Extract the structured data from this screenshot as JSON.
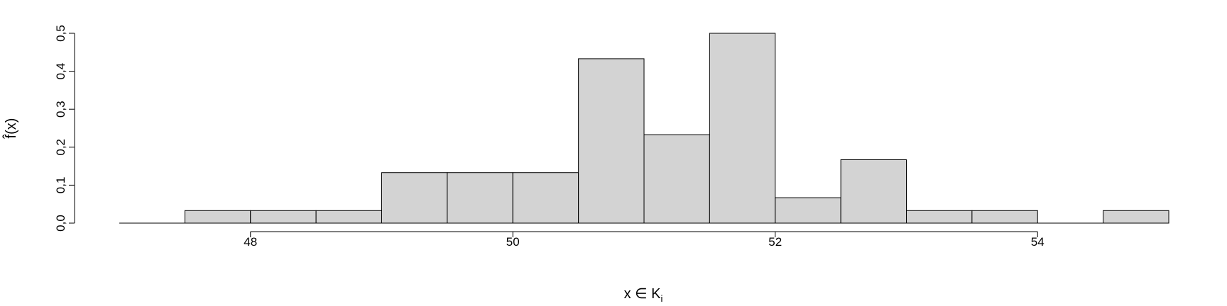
{
  "chart_data": {
    "type": "bar",
    "subtype": "histogram",
    "xlabel": "x ∈ K",
    "xlabel_sub": "i",
    "ylabel": "f̂(x)",
    "xlim": [
      47,
      55
    ],
    "ylim": [
      0,
      0.5
    ],
    "bins": [
      {
        "x0": 47.5,
        "x1": 48.0,
        "value": 0.033
      },
      {
        "x0": 48.0,
        "x1": 48.5,
        "value": 0.033
      },
      {
        "x0": 48.5,
        "x1": 49.0,
        "value": 0.033
      },
      {
        "x0": 49.0,
        "x1": 49.5,
        "value": 0.133
      },
      {
        "x0": 49.5,
        "x1": 50.0,
        "value": 0.133
      },
      {
        "x0": 50.0,
        "x1": 50.5,
        "value": 0.133
      },
      {
        "x0": 50.5,
        "x1": 51.0,
        "value": 0.433
      },
      {
        "x0": 51.0,
        "x1": 51.5,
        "value": 0.233
      },
      {
        "x0": 51.5,
        "x1": 52.0,
        "value": 0.5
      },
      {
        "x0": 52.0,
        "x1": 52.5,
        "value": 0.067
      },
      {
        "x0": 52.5,
        "x1": 53.0,
        "value": 0.167
      },
      {
        "x0": 53.0,
        "x1": 53.5,
        "value": 0.033
      },
      {
        "x0": 53.5,
        "x1": 54.0,
        "value": 0.033
      },
      {
        "x0": 54.5,
        "x1": 55.0,
        "value": 0.033
      }
    ],
    "x_ticks": [
      {
        "value": 48,
        "label": "48"
      },
      {
        "value": 50,
        "label": "50"
      },
      {
        "value": 52,
        "label": "52"
      },
      {
        "value": 54,
        "label": "54"
      }
    ],
    "y_ticks": [
      {
        "value": 0.0,
        "label": "0,0"
      },
      {
        "value": 0.1,
        "label": "0,1"
      },
      {
        "value": 0.2,
        "label": "0,2"
      },
      {
        "value": 0.3,
        "label": "0,3"
      },
      {
        "value": 0.4,
        "label": "0,4"
      },
      {
        "value": 0.5,
        "label": "0,5"
      }
    ],
    "bar_fill": "#d3d3d3",
    "bar_stroke": "#000000",
    "grid": false,
    "legend": "none"
  }
}
